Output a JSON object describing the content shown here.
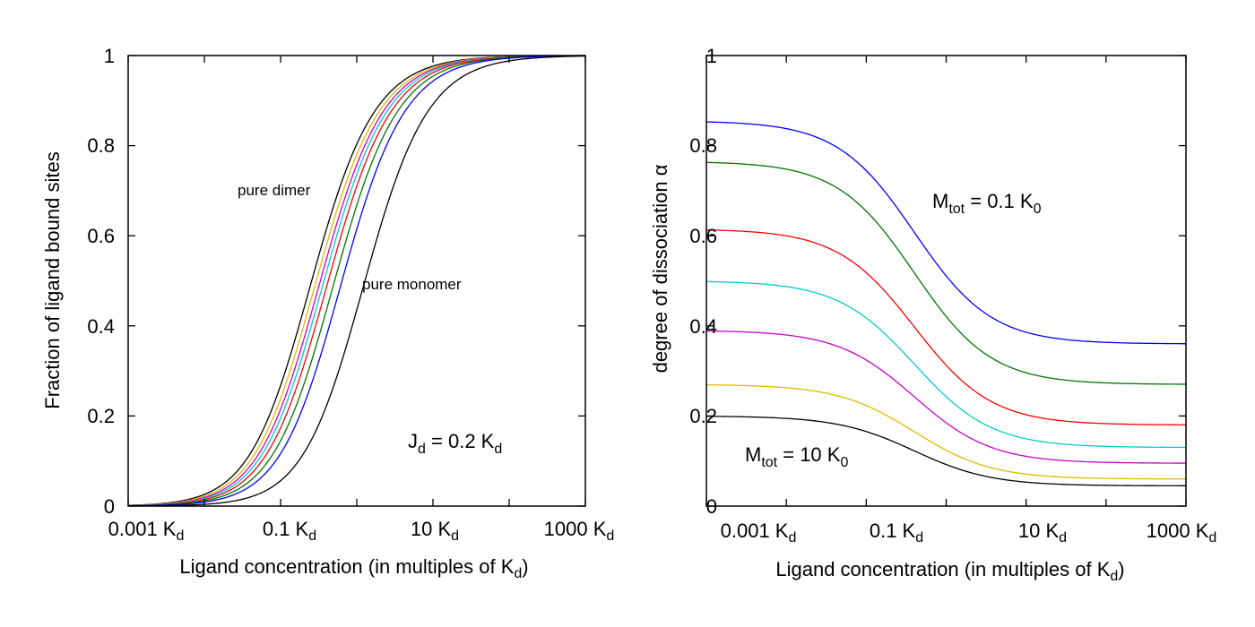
{
  "chart_data": [
    {
      "type": "line",
      "xscale": "log",
      "xlim": [
        0.001,
        1000
      ],
      "ylim": [
        0,
        1
      ],
      "x_ticks": [
        {
          "main": "0.001 K",
          "sub": "d"
        },
        {
          "main": "0.1 K",
          "sub": "d"
        },
        {
          "main": "10 K",
          "sub": "d"
        },
        {
          "main": "1000 K",
          "sub": "d"
        }
      ],
      "y_ticks": [
        "0",
        "0.2",
        "0.4",
        "0.6",
        "0.8",
        "1"
      ],
      "xlabel": {
        "main": "Ligand concentration (in multiples of K",
        "sub": "d",
        "tail": ")"
      },
      "ylabel": "Fraction of ligand bound sites",
      "grid": false,
      "annotations": [
        {
          "text": "pure dimer"
        },
        {
          "text": "pure monomer"
        },
        {
          "main": "J",
          "sub": "d",
          "rest": " = 0.2 K",
          "sub2": "d"
        }
      ],
      "series": [
        {
          "color": "#000000",
          "k": 0.2
        },
        {
          "color": "#e6b800",
          "k": 0.23
        },
        {
          "color": "#cc00cc",
          "k": 0.26
        },
        {
          "color": "#00cccc",
          "k": 0.29
        },
        {
          "color": "#ff0000",
          "k": 0.33
        },
        {
          "color": "#007700",
          "k": 0.4
        },
        {
          "color": "#0000ff",
          "k": 0.5
        },
        {
          "color": "#000000",
          "k": 1.0
        }
      ]
    },
    {
      "type": "line",
      "xscale": "log",
      "xlim": [
        0.001,
        1000
      ],
      "ylim": [
        0,
        1
      ],
      "x_ticks": [
        {
          "main": "0.001 K",
          "sub": "d"
        },
        {
          "main": "0.1 K",
          "sub": "d"
        },
        {
          "main": "10 K",
          "sub": "d"
        },
        {
          "main": "1000 K",
          "sub": "d"
        }
      ],
      "y_ticks": [
        "0",
        "0.2",
        "0.4",
        "0.6",
        "0.8",
        "1"
      ],
      "xlabel": {
        "main": "Ligand concentration (in multiples of K",
        "sub": "d",
        "tail": ")"
      },
      "ylabel": "degree of dissociation α",
      "grid": false,
      "annotations": [
        {
          "main": "M",
          "sub": "tot",
          "rest": " = 0.1 K",
          "sub2": "0"
        },
        {
          "main": "M",
          "sub": "tot",
          "rest": " = 10 K",
          "sub2": "0"
        }
      ],
      "series": [
        {
          "color": "#0000ff",
          "start": 0.855,
          "end": 0.36
        },
        {
          "color": "#007700",
          "start": 0.765,
          "end": 0.27
        },
        {
          "color": "#ff0000",
          "start": 0.615,
          "end": 0.18
        },
        {
          "color": "#00cccc",
          "start": 0.5,
          "end": 0.13
        },
        {
          "color": "#cc00cc",
          "start": 0.39,
          "end": 0.095
        },
        {
          "color": "#e6b800",
          "start": 0.27,
          "end": 0.06
        },
        {
          "color": "#000000",
          "start": 0.2,
          "end": 0.045
        }
      ]
    }
  ]
}
